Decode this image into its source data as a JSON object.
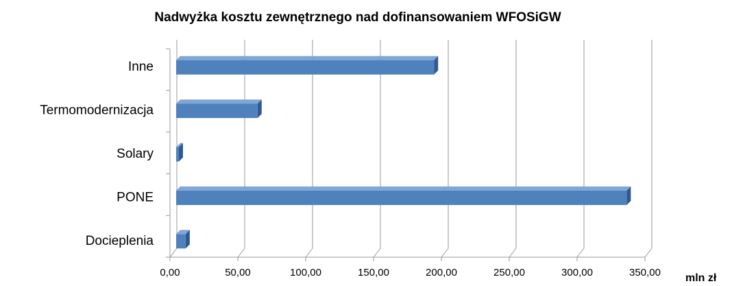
{
  "chart_data": {
    "type": "bar",
    "orientation": "horizontal",
    "title": "Nadwyżka kosztu zewnętrznego nad dofinansowaniem WFOSiGW",
    "x_label": "mln zł",
    "categories": [
      "Inne",
      "Termomodernizacja",
      "Solary",
      "PONE",
      "Docieplenia"
    ],
    "values": [
      190,
      60,
      2,
      332,
      7
    ],
    "color": "#4f81bd",
    "xlim": [
      0,
      350
    ],
    "xticks": [
      {
        "value": 0,
        "label": "0,00"
      },
      {
        "value": 50,
        "label": "50,00"
      },
      {
        "value": 100,
        "label": "100,00"
      },
      {
        "value": 150,
        "label": "150,00"
      },
      {
        "value": 200,
        "label": "200,00"
      },
      {
        "value": 250,
        "label": "250,00"
      },
      {
        "value": 300,
        "label": "300,00"
      },
      {
        "value": 350,
        "label": "350,00"
      }
    ],
    "grid": true
  }
}
